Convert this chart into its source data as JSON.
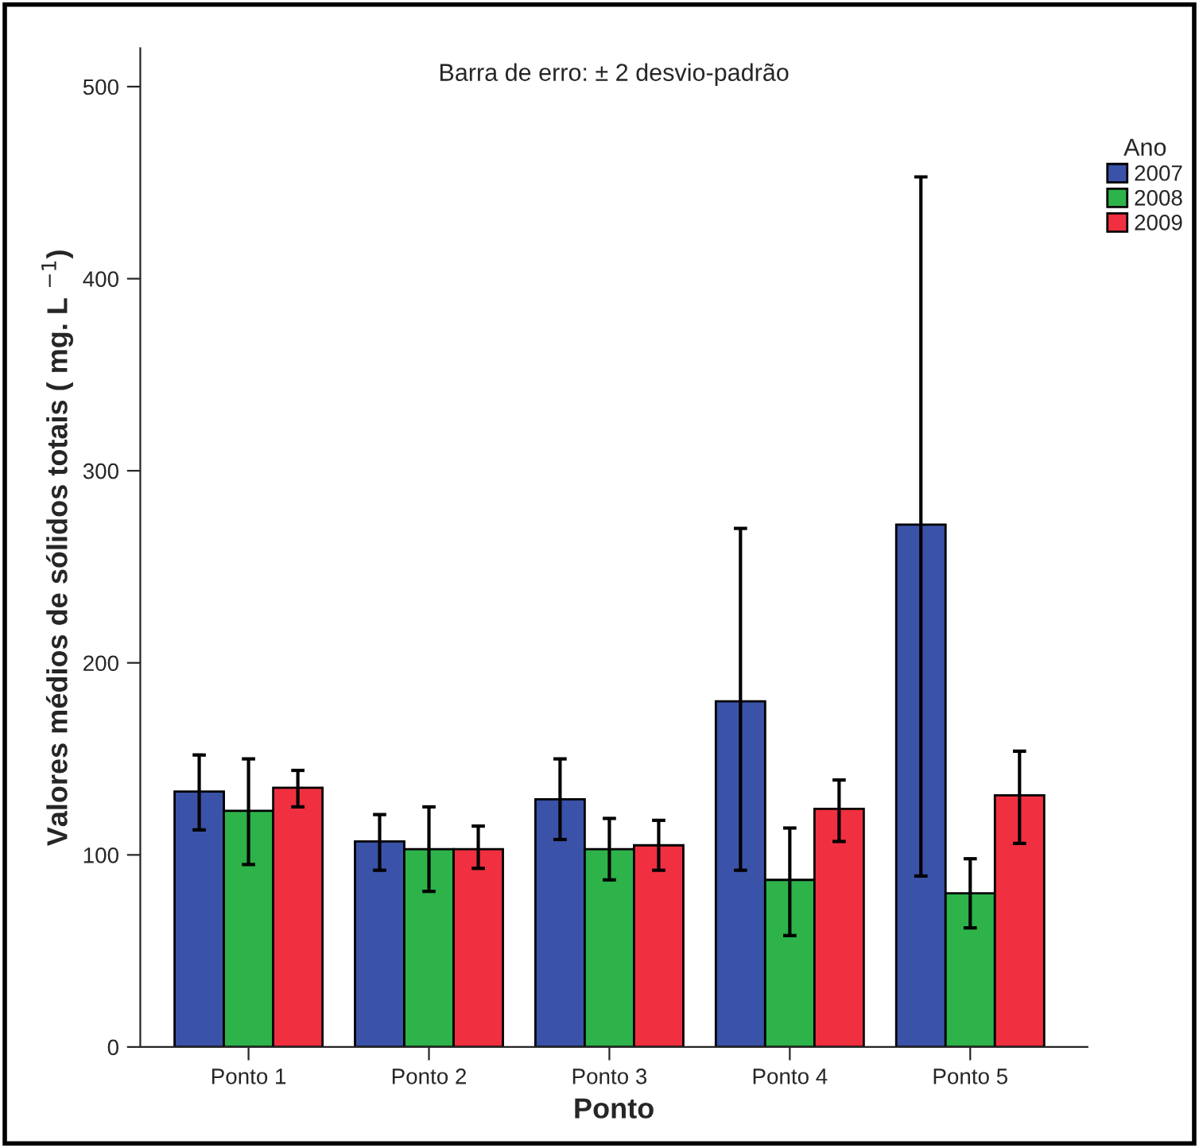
{
  "chart_data": {
    "type": "bar",
    "title": "Barra de erro: ± 2 desvio-padrão",
    "xlabel": "Ponto",
    "ylabel": "Valores médios de sólidos totais ( mg. L $^{−1}$)",
    "categories": [
      "Ponto 1",
      "Ponto 2",
      "Ponto 3",
      "Ponto 4",
      "Ponto 5"
    ],
    "legend_title": "Ano",
    "legend": "right",
    "series": [
      {
        "name": "2007",
        "color": "#3a52a8",
        "values": [
          133,
          107,
          129,
          180,
          272
        ],
        "errors": [
          [
            113,
            152
          ],
          [
            92,
            121
          ],
          [
            108,
            150
          ],
          [
            92,
            270
          ],
          [
            89,
            453
          ]
        ]
      },
      {
        "name": "2008",
        "color": "#2db34a",
        "values": [
          123,
          103,
          103,
          87,
          80
        ],
        "errors": [
          [
            95,
            150
          ],
          [
            81,
            125
          ],
          [
            87,
            119
          ],
          [
            58,
            114
          ],
          [
            62,
            98
          ]
        ]
      },
      {
        "name": "2009",
        "color": "#f03040",
        "values": [
          135,
          103,
          105,
          124,
          131
        ],
        "errors": [
          [
            125,
            144
          ],
          [
            93,
            115
          ],
          [
            92,
            118
          ],
          [
            107,
            139
          ],
          [
            106,
            154
          ]
        ]
      }
    ],
    "ylim": [
      0,
      520
    ],
    "yticks": [
      0,
      100,
      200,
      300,
      400,
      500
    ],
    "grid": false
  }
}
